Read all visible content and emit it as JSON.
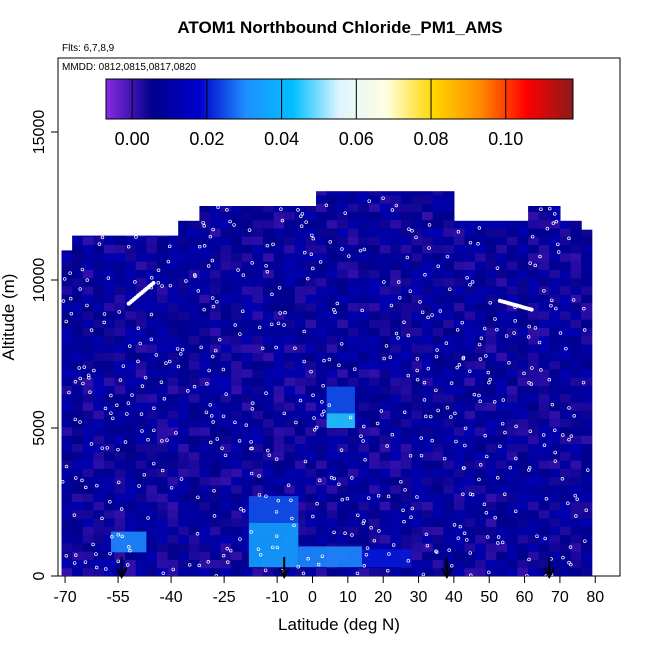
{
  "chart_data": {
    "type": "heatmap",
    "title": "ATOM1 Northbound Chloride_PM1_AMS",
    "flights_label": "Flts: 6,7,8,9",
    "dates_label": "MMDD: 0812,0815,0817,0820",
    "xlabel": "Latitude (deg N)",
    "ylabel": "Altitude (m)",
    "xlim": [
      -72,
      87
    ],
    "ylim": [
      0,
      17500
    ],
    "x_ticks": [
      -70,
      -55,
      -40,
      -25,
      -10,
      0,
      10,
      20,
      30,
      40,
      50,
      60,
      70,
      80
    ],
    "y_ticks": [
      0,
      5000,
      10000,
      15000
    ],
    "colorbar": {
      "range": [
        -0.007,
        0.118
      ],
      "ticks": [
        0.0,
        0.02,
        0.04,
        0.06,
        0.08,
        0.1
      ],
      "tick_labels": [
        "0.00",
        "0.02",
        "0.04",
        "0.06",
        "0.08",
        "0.10"
      ],
      "colors": [
        "#8a2be2",
        "#00008b",
        "#0000cd",
        "#1e90ff",
        "#00bfff",
        "#e0f4ff",
        "#ffffe0",
        "#ffd700",
        "#ff8c00",
        "#ff0000",
        "#8b1a1a"
      ]
    },
    "data_top_profile": [
      {
        "x": -71,
        "top": 11000
      },
      {
        "x": -68,
        "top": 11500
      },
      {
        "x": -40,
        "top": 12000
      },
      {
        "x": -32,
        "top": 12500
      },
      {
        "x": 0,
        "top": 13000
      },
      {
        "x": 38,
        "top": 12000
      },
      {
        "x": 61,
        "top": 12500
      },
      {
        "x": 70,
        "top": 12000
      },
      {
        "x": 74,
        "top": 11700
      },
      {
        "x": 77,
        "top": 11000
      },
      {
        "x": 78,
        "top": 8000
      },
      {
        "x": 79,
        "top": 0
      }
    ],
    "highlights": [
      {
        "x0": -57,
        "x1": -47,
        "y0": 800,
        "y1": 1500,
        "value": 0.03
      },
      {
        "x0": -18,
        "x1": -4,
        "y0": 300,
        "y1": 1800,
        "value": 0.035
      },
      {
        "x0": -18,
        "x1": -4,
        "y0": 1800,
        "y1": 2700,
        "value": 0.025
      },
      {
        "x0": 4,
        "x1": 12,
        "y0": 5000,
        "y1": 5500,
        "value": 0.045
      },
      {
        "x0": 4,
        "x1": 12,
        "y0": 5500,
        "y1": 6400,
        "value": 0.025
      },
      {
        "x0": -4,
        "x1": 14,
        "y0": 300,
        "y1": 1000,
        "value": 0.03
      },
      {
        "x0": 14,
        "x1": 28,
        "y0": 300,
        "y1": 900,
        "value": 0.02
      }
    ],
    "arrows_latitude": [
      -54,
      -8,
      38,
      67
    ]
  }
}
